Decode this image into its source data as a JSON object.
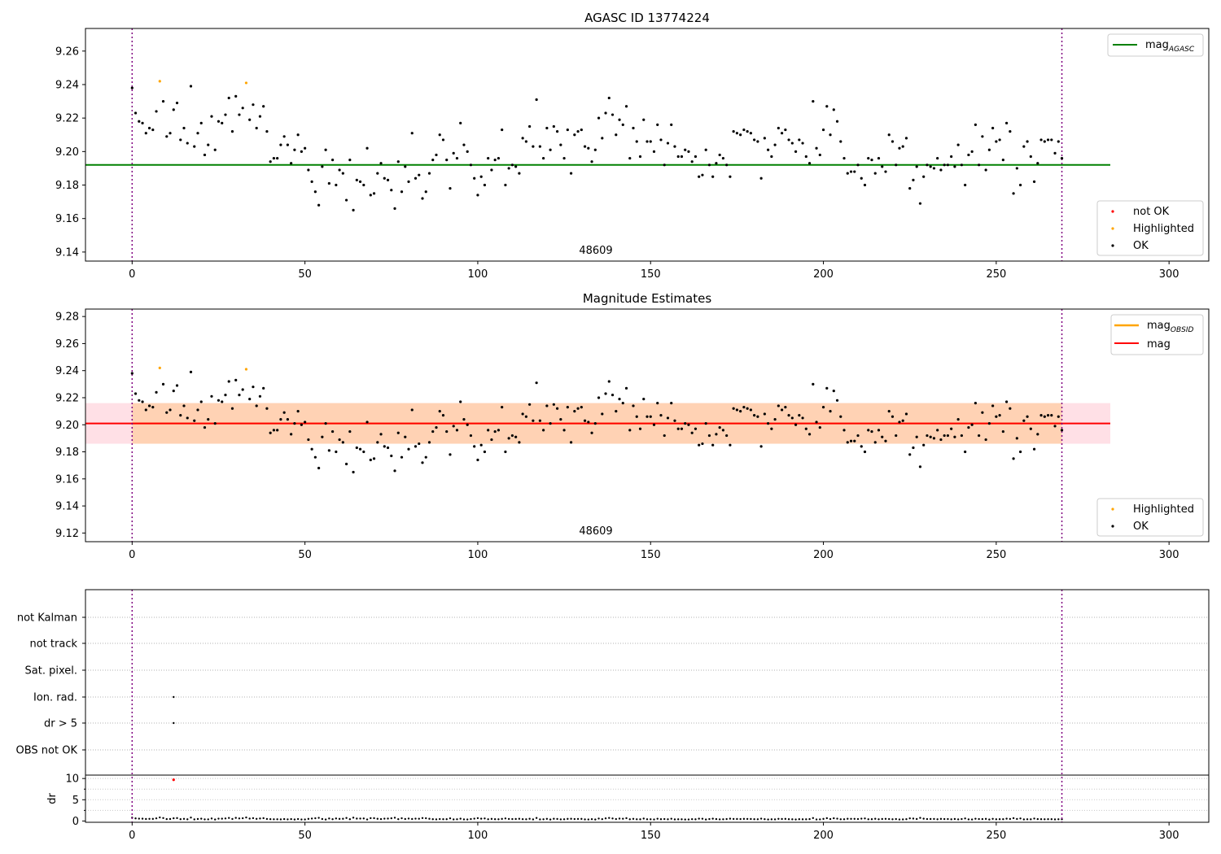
{
  "figure": {
    "panel1": {
      "title": "AGASC ID 13774224",
      "obsid_label": "48609",
      "legend_line": {
        "label": "mag",
        "sub": "AGASC"
      },
      "legend_points": [
        "not OK",
        "Highlighted",
        "OK"
      ]
    },
    "panel2": {
      "title": "Magnitude Estimates",
      "obsid_label": "48609",
      "legend_lines": [
        {
          "label": "mag",
          "sub": "OBSID"
        },
        {
          "label": "mag",
          "sub": ""
        }
      ],
      "legend_points": [
        "Highlighted",
        "OK"
      ]
    },
    "panel3": {
      "flag_labels": [
        "not Kalman",
        "not track",
        "Sat. pixel.",
        "Ion. rad.",
        "dr > 5",
        "OBS not OK"
      ],
      "dr_label": "dr"
    }
  },
  "colors": {
    "ok": "#000000",
    "highlighted": "#ffa500",
    "not_ok": "#ff0000",
    "mag_agasc_line": "#008000",
    "mag_obsid_line": "#ffa500",
    "mag_line": "#ff0000",
    "obs_boundary": "#800080",
    "band_obsid": "#ffd2b4",
    "band_mag": "#ffe0e6"
  },
  "chart_data": [
    {
      "type": "scatter",
      "title": "AGASC ID 13774224",
      "xlabel": "",
      "ylabel": "",
      "xlim": [
        -13.5,
        311.5
      ],
      "ylim": [
        9.1346,
        9.2735
      ],
      "xticks": [
        0,
        50,
        100,
        150,
        200,
        250,
        300
      ],
      "yticks": [
        9.14,
        9.16,
        9.18,
        9.2,
        9.22,
        9.24,
        9.26
      ],
      "legend": [
        "mag_AGASC",
        "not OK",
        "Highlighted",
        "OK"
      ],
      "legend_placement": "top-right / bottom-right",
      "mag_agasc": 9.192,
      "obs_boundaries": [
        0,
        269
      ],
      "annotation": "48609",
      "series_encoding": "index i = x; magnitude = mag_base[i]; highlighted points at x = 8 and x = 33"
    },
    {
      "type": "scatter",
      "title": "Magnitude Estimates",
      "xlim": [
        -13.5,
        311.5
      ],
      "ylim": [
        9.1136,
        9.2855
      ],
      "xticks": [
        0,
        50,
        100,
        150,
        200,
        250,
        300
      ],
      "yticks": [
        9.12,
        9.14,
        9.16,
        9.18,
        9.2,
        9.22,
        9.24,
        9.26,
        9.28
      ],
      "legend": [
        "mag_OBSID",
        "mag",
        "Highlighted",
        "OK"
      ],
      "legend_placement": "top-right / bottom-right",
      "mag_obsid": 9.201,
      "mag": 9.201,
      "band": [
        9.186,
        9.216
      ],
      "obs_boundaries": [
        0,
        269
      ],
      "annotation": "48609"
    },
    {
      "type": "scatter",
      "title": "",
      "xlim": [
        -13.5,
        311.5
      ],
      "xticks": [
        0,
        50,
        100,
        150,
        200,
        250,
        300
      ],
      "categories": [
        "not Kalman",
        "not track",
        "Sat. pixel.",
        "Ion. rad.",
        "dr > 5",
        "OBS not OK"
      ],
      "flag_points": [
        {
          "category": "Ion. rad.",
          "x": 12
        },
        {
          "category": "dr > 5",
          "x": 12
        }
      ],
      "dr_ylim": [
        -0.3,
        10.8
      ],
      "dr_yticks": [
        0,
        5,
        10
      ],
      "dr_outlier": {
        "x": 12,
        "y": 9.7
      },
      "mag_base": [
        9.238,
        9.223,
        9.218,
        9.217,
        9.211,
        9.214,
        9.213,
        9.224,
        9.242,
        9.23,
        9.209,
        9.211,
        9.225,
        9.229,
        9.207,
        9.214,
        9.205,
        9.239,
        9.203,
        9.211,
        9.217,
        9.198,
        9.204,
        9.221,
        9.201,
        9.218,
        9.217,
        9.222,
        9.232,
        9.212,
        9.233,
        9.222,
        9.226,
        9.241,
        9.219,
        9.228,
        9.214,
        9.221,
        9.227,
        9.212,
        9.194,
        9.196,
        9.196,
        9.204,
        9.209,
        9.204,
        9.193,
        9.201,
        9.21,
        9.2,
        9.202,
        9.189,
        9.182,
        9.176,
        9.168,
        9.191,
        9.201,
        9.181,
        9.195,
        9.18,
        9.189,
        9.187,
        9.171,
        9.195,
        9.165,
        9.183,
        9.182,
        9.18,
        9.202,
        9.174,
        9.175,
        9.187,
        9.193,
        9.184,
        9.183,
        9.177,
        9.166,
        9.194,
        9.176,
        9.191,
        9.182,
        9.211,
        9.184,
        9.186,
        9.172,
        9.176,
        9.187,
        9.195,
        9.198,
        9.21,
        9.207,
        9.195,
        9.178,
        9.199,
        9.196,
        9.217,
        9.204,
        9.2,
        9.192,
        9.184,
        9.174,
        9.185,
        9.18,
        9.196,
        9.189,
        9.195,
        9.196,
        9.213,
        9.18,
        9.19,
        9.192,
        9.191,
        9.187,
        9.208,
        9.206,
        9.215,
        9.203,
        9.231,
        9.203,
        9.196,
        9.214,
        9.201,
        9.215,
        9.212,
        9.204,
        9.196,
        9.213,
        9.187,
        9.21,
        9.212,
        9.213,
        9.203,
        9.202,
        9.194,
        9.201,
        9.22,
        9.208,
        9.223,
        9.232,
        9.222,
        9.21,
        9.219,
        9.216,
        9.227,
        9.196,
        9.214,
        9.206,
        9.197,
        9.219,
        9.206,
        9.206,
        9.2,
        9.216,
        9.207,
        9.192,
        9.205,
        9.216,
        9.203,
        9.197,
        9.197,
        9.201,
        9.2,
        9.194,
        9.197,
        9.185,
        9.186,
        9.201,
        9.192,
        9.185,
        9.193,
        9.198,
        9.196,
        9.192,
        9.185,
        9.212,
        9.211,
        9.21,
        9.213,
        9.212,
        9.211,
        9.207,
        9.206,
        9.184,
        9.208,
        9.201,
        9.197,
        9.204,
        9.214,
        9.211,
        9.213,
        9.207,
        9.205,
        9.2,
        9.207,
        9.205,
        9.197,
        9.193,
        9.23,
        9.202,
        9.198,
        9.213,
        9.227,
        9.21,
        9.225,
        9.218,
        9.206,
        9.196,
        9.187,
        9.188,
        9.188,
        9.192,
        9.184,
        9.18,
        9.196,
        9.195,
        9.187,
        9.196,
        9.191,
        9.188,
        9.21,
        9.206,
        9.192,
        9.202,
        9.203,
        9.208,
        9.178,
        9.183,
        9.191,
        9.169,
        9.185,
        9.192,
        9.191,
        9.19,
        9.196,
        9.189,
        9.192,
        9.192,
        9.197,
        9.191,
        9.204,
        9.192,
        9.18,
        9.198,
        9.2,
        9.216,
        9.192,
        9.209,
        9.189,
        9.201,
        9.214,
        9.206,
        9.207,
        9.195,
        9.217,
        9.212,
        9.175,
        9.19,
        9.18,
        9.203,
        9.206,
        9.197,
        9.182,
        9.193,
        9.207,
        9.206,
        9.207,
        9.207,
        9.199,
        9.206,
        9.196
      ]
    }
  ]
}
